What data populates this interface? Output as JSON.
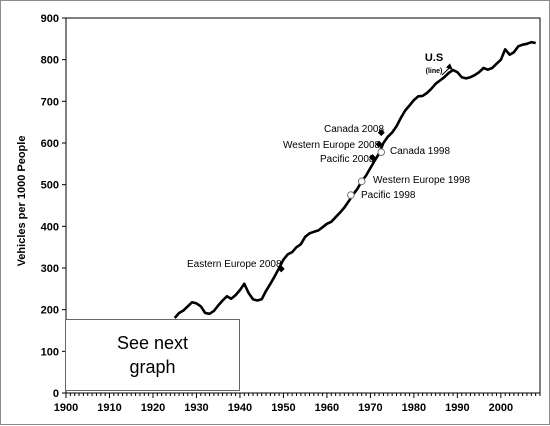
{
  "chart_data": {
    "type": "line",
    "title": "",
    "xlabel": "",
    "ylabel": "Vehicles per 1000 People",
    "xlim": [
      1900,
      2009
    ],
    "ylim": [
      0,
      900
    ],
    "x_ticks": [
      1900,
      1910,
      1920,
      1930,
      1940,
      1950,
      1960,
      1970,
      1980,
      1990,
      2000
    ],
    "y_ticks": [
      0,
      100,
      200,
      300,
      400,
      500,
      600,
      700,
      800,
      900
    ],
    "grid": false,
    "legend": "none",
    "series": [
      {
        "name": "U.S (line)",
        "color": "#000000",
        "x": [
          1925,
          1926,
          1927,
          1928,
          1929,
          1930,
          1931,
          1932,
          1933,
          1934,
          1935,
          1936,
          1937,
          1938,
          1939,
          1940,
          1941,
          1942,
          1943,
          1944,
          1945,
          1946,
          1947,
          1948,
          1949,
          1950,
          1951,
          1952,
          1953,
          1954,
          1955,
          1956,
          1957,
          1958,
          1959,
          1960,
          1961,
          1962,
          1963,
          1964,
          1965,
          1966,
          1967,
          1968,
          1969,
          1970,
          1971,
          1972,
          1973,
          1974,
          1975,
          1976,
          1977,
          1978,
          1979,
          1980,
          1981,
          1982,
          1983,
          1984,
          1985,
          1986,
          1987,
          1988,
          1989,
          1990,
          1991,
          1992,
          1993,
          1994,
          1995,
          1996,
          1997,
          1998,
          1999,
          2000,
          2001,
          2002,
          2003,
          2004,
          2005,
          2006,
          2007,
          2008
        ],
        "y": [
          180,
          192,
          198,
          208,
          218,
          215,
          208,
          192,
          190,
          197,
          210,
          222,
          232,
          226,
          235,
          247,
          262,
          240,
          225,
          222,
          225,
          245,
          262,
          280,
          300,
          320,
          333,
          338,
          350,
          357,
          375,
          383,
          387,
          390,
          398,
          406,
          411,
          422,
          433,
          445,
          460,
          476,
          490,
          508,
          522,
          540,
          558,
          575,
          600,
          615,
          625,
          640,
          660,
          678,
          690,
          703,
          712,
          713,
          720,
          730,
          742,
          750,
          758,
          768,
          775,
          770,
          758,
          755,
          758,
          763,
          770,
          780,
          776,
          780,
          790,
          800,
          825,
          812,
          818,
          832,
          836,
          838,
          842,
          840
        ]
      }
    ],
    "annotations": [
      {
        "label": "Canada 2008",
        "x": 1972.5,
        "y": 625,
        "marker": "filled"
      },
      {
        "label": "Western Europe 2008",
        "x": 1972,
        "y": 597,
        "marker": "filled"
      },
      {
        "label": "Pacific 2008",
        "x": 1970.5,
        "y": 565,
        "marker": "filled"
      },
      {
        "label": "Canada 1998",
        "x": 1972.5,
        "y": 578,
        "marker": "open"
      },
      {
        "label": "Western Europe 1998",
        "x": 1968,
        "y": 508,
        "marker": "open"
      },
      {
        "label": "Pacific 1998",
        "x": 1965.5,
        "y": 475,
        "marker": "open"
      },
      {
        "label": "Eastern Europe 2008",
        "x": 1949.5,
        "y": 298,
        "marker": "filled"
      }
    ],
    "us_label": {
      "line1": "U.S",
      "line2": "(line)"
    },
    "note": "See next graph"
  }
}
